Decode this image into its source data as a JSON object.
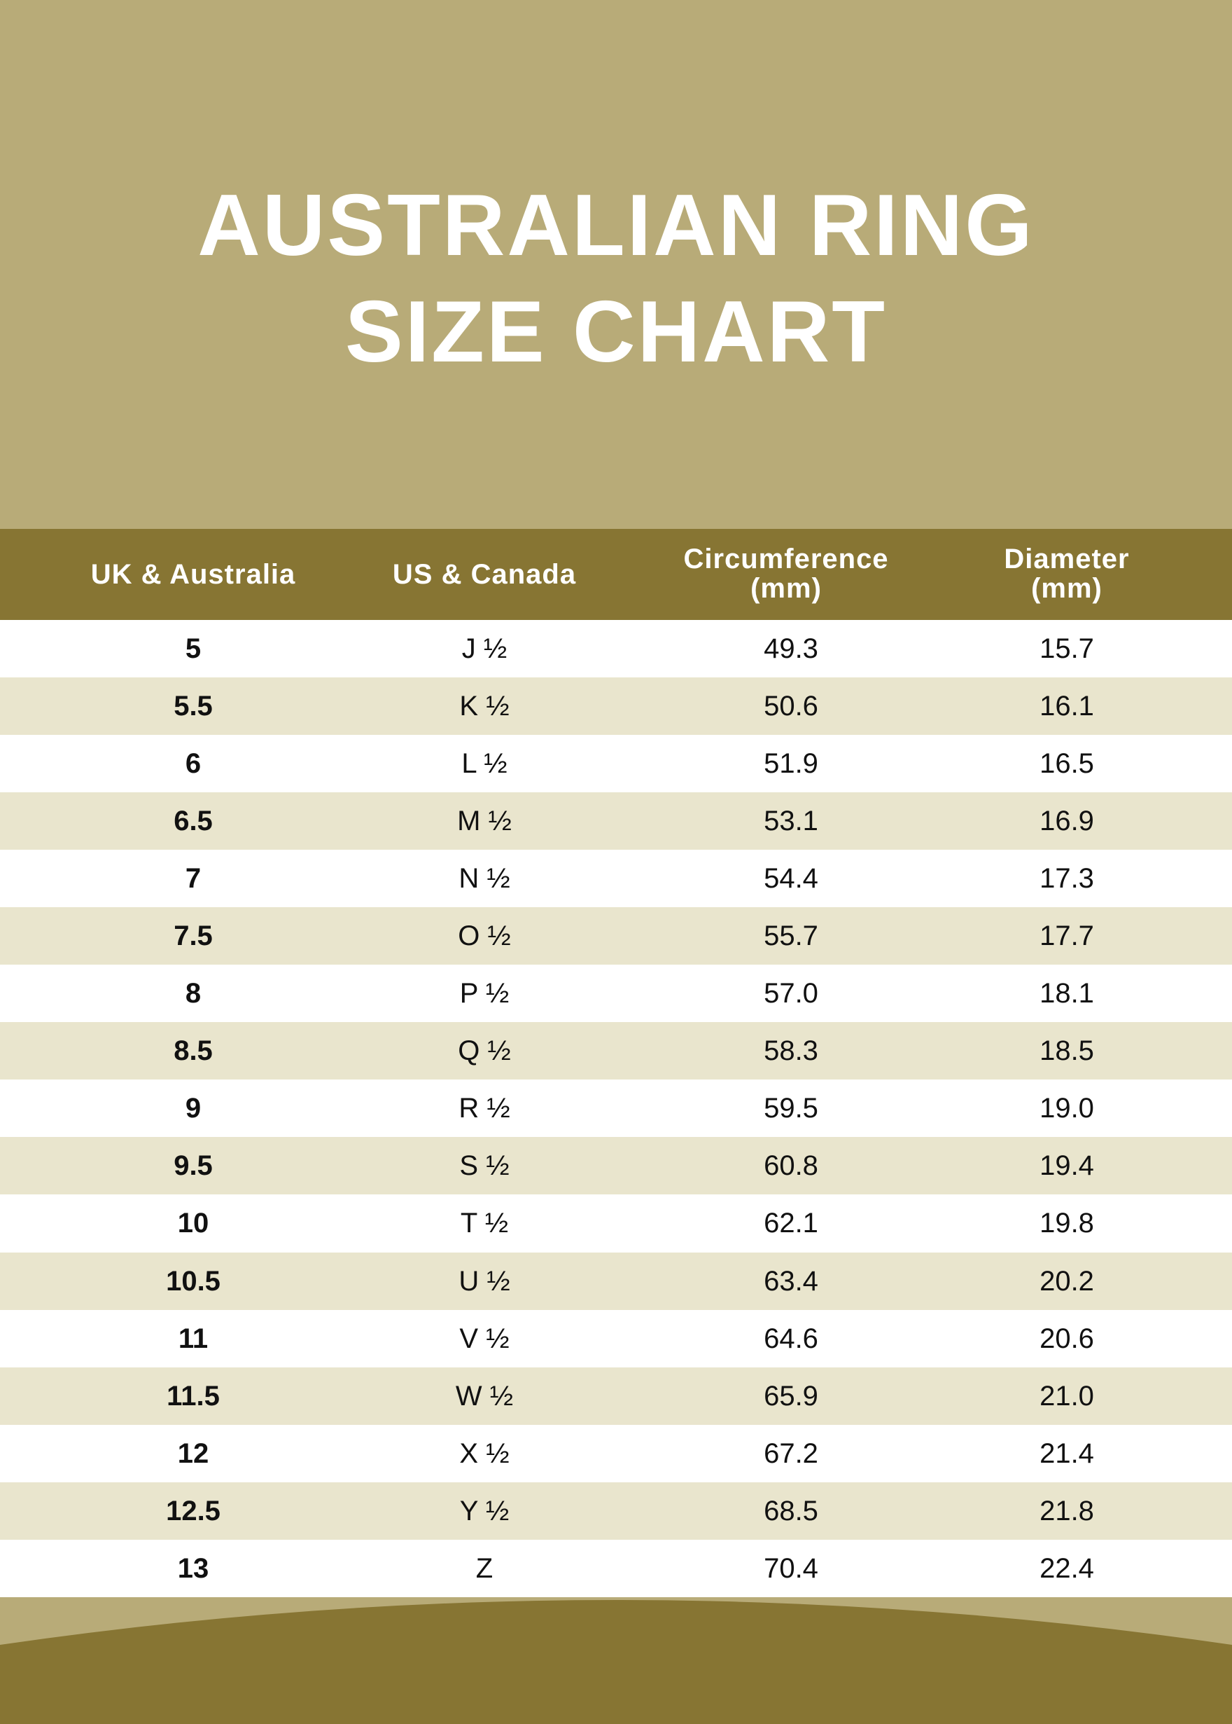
{
  "title": {
    "line1": "AUSTRALIAN RING",
    "line2": "SIZE CHART"
  },
  "colors": {
    "light_band": "#b8ab78",
    "dark_band": "#877533",
    "alt_row": "#e9e5cd"
  },
  "table": {
    "headers": [
      {
        "line1": "UK & Australia",
        "line2": ""
      },
      {
        "line1": "US & Canada",
        "line2": ""
      },
      {
        "line1": "Circumference",
        "line2": "(mm)"
      },
      {
        "line1": "Diameter",
        "line2": "(mm)"
      }
    ],
    "rows": [
      [
        "5",
        "J ½",
        "49.3",
        "15.7"
      ],
      [
        "5.5",
        "K ½",
        "50.6",
        "16.1"
      ],
      [
        "6",
        "L ½",
        "51.9",
        "16.5"
      ],
      [
        "6.5",
        "M ½",
        "53.1",
        "16.9"
      ],
      [
        "7",
        "N ½",
        "54.4",
        "17.3"
      ],
      [
        "7.5",
        "O ½",
        "55.7",
        "17.7"
      ],
      [
        "8",
        "P ½",
        "57.0",
        "18.1"
      ],
      [
        "8.5",
        "Q ½",
        "58.3",
        "18.5"
      ],
      [
        "9",
        "R ½",
        "59.5",
        "19.0"
      ],
      [
        "9.5",
        "S ½",
        "60.8",
        "19.4"
      ],
      [
        "10",
        "T ½",
        "62.1",
        "19.8"
      ],
      [
        "10.5",
        "U ½",
        "63.4",
        "20.2"
      ],
      [
        "11",
        "V ½",
        "64.6",
        "20.6"
      ],
      [
        "11.5",
        "W ½",
        "65.9",
        "21.0"
      ],
      [
        "12",
        "X ½",
        "67.2",
        "21.4"
      ],
      [
        "12.5",
        "Y ½",
        "68.5",
        "21.8"
      ],
      [
        "13",
        "Z",
        "70.4",
        "22.4"
      ]
    ]
  }
}
